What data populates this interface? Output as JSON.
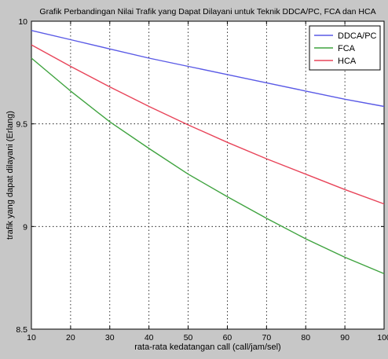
{
  "chart_data": {
    "type": "line",
    "title": "Grafik Perbandingan Nilai Trafik yang Dapat Dilayani untuk Teknik DDCA/PC, FCA dan HCA",
    "xlabel": "rata-rata kedatangan call (call/jam/sel)",
    "ylabel": "trafik yang dapat dilayani (Erlang)",
    "xlim": [
      10,
      100
    ],
    "ylim": [
      8.5,
      10
    ],
    "xticks": [
      10,
      20,
      30,
      40,
      50,
      60,
      70,
      80,
      90,
      100
    ],
    "yticks": [
      8.5,
      9,
      9.5,
      10
    ],
    "ytick_labels": [
      "8.5",
      "9",
      "9.5",
      "10"
    ],
    "grid": true,
    "legend_position": "top-right",
    "x": [
      10,
      20,
      30,
      40,
      50,
      60,
      70,
      80,
      90,
      100
    ],
    "series": [
      {
        "name": "DDCA/PC",
        "color": "#5a5ae6",
        "values": [
          9.955,
          9.91,
          9.865,
          9.82,
          9.78,
          9.74,
          9.7,
          9.66,
          9.62,
          9.585
        ]
      },
      {
        "name": "FCA",
        "color": "#3fa33f",
        "values": [
          9.82,
          9.66,
          9.51,
          9.38,
          9.255,
          9.145,
          9.04,
          8.94,
          8.85,
          8.77
        ]
      },
      {
        "name": "HCA",
        "color": "#e8455a",
        "values": [
          9.885,
          9.78,
          9.68,
          9.585,
          9.495,
          9.41,
          9.33,
          9.255,
          9.18,
          9.11
        ]
      }
    ]
  }
}
